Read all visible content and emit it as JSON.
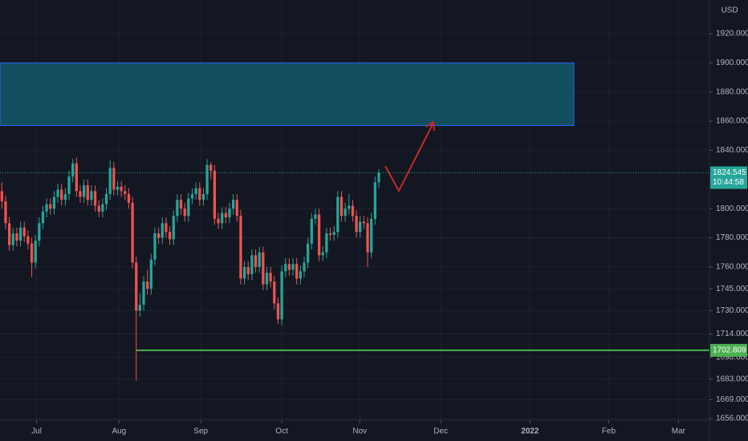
{
  "chart_data": {
    "type": "candlestick",
    "up_color": "#26a69a",
    "down_color": "#ef5350",
    "open": [
      1812,
      1805,
      1790,
      1775,
      1783,
      1778,
      1787,
      1781,
      1776,
      1763,
      1778,
      1790,
      1798,
      1803,
      1800,
      1808,
      1813,
      1806,
      1810,
      1822,
      1831,
      1812,
      1808,
      1816,
      1806,
      1812,
      1802,
      1798,
      1803,
      1810,
      1828,
      1813,
      1815,
      1812,
      1810,
      1804,
      1763,
      1730,
      1734,
      1750,
      1745,
      1765,
      1783,
      1780,
      1790,
      1784,
      1779,
      1795,
      1806,
      1800,
      1795,
      1807,
      1810,
      1814,
      1806,
      1810,
      1830,
      1826,
      1793,
      1790,
      1797,
      1794,
      1800,
      1806,
      1795,
      1752,
      1760,
      1755,
      1768,
      1760,
      1770,
      1748,
      1756,
      1750,
      1735,
      1724,
      1757,
      1762,
      1758,
      1762,
      1752,
      1757,
      1763,
      1776,
      1793,
      1796,
      1768,
      1770,
      1783,
      1782,
      1784,
      1808,
      1795,
      1800,
      1802,
      1795,
      1784,
      1791,
      1790,
      1770,
      1793,
      1818
    ],
    "high": [
      1818,
      1809,
      1794,
      1787,
      1787,
      1791,
      1791,
      1785,
      1780,
      1782,
      1794,
      1802,
      1807,
      1807,
      1812,
      1817,
      1817,
      1814,
      1826,
      1834,
      1835,
      1816,
      1820,
      1820,
      1816,
      1816,
      1806,
      1807,
      1814,
      1833,
      1832,
      1819,
      1819,
      1816,
      1814,
      1808,
      1767,
      1742,
      1754,
      1758,
      1769,
      1787,
      1787,
      1794,
      1794,
      1788,
      1799,
      1810,
      1810,
      1804,
      1811,
      1814,
      1818,
      1818,
      1814,
      1834,
      1832,
      1830,
      1797,
      1801,
      1801,
      1804,
      1810,
      1810,
      1799,
      1764,
      1764,
      1772,
      1772,
      1774,
      1774,
      1760,
      1760,
      1754,
      1739,
      1761,
      1766,
      1766,
      1766,
      1766,
      1761,
      1767,
      1780,
      1797,
      1800,
      1800,
      1774,
      1787,
      1787,
      1788,
      1812,
      1812,
      1804,
      1810,
      1806,
      1799,
      1795,
      1795,
      1794,
      1797,
      1822,
      1827
    ],
    "low": [
      1800,
      1786,
      1771,
      1771,
      1774,
      1774,
      1777,
      1772,
      1753,
      1759,
      1774,
      1786,
      1794,
      1796,
      1796,
      1804,
      1802,
      1802,
      1806,
      1818,
      1808,
      1804,
      1804,
      1802,
      1802,
      1798,
      1794,
      1794,
      1799,
      1806,
      1809,
      1809,
      1808,
      1806,
      1800,
      1759,
      1682,
      1726,
      1730,
      1741,
      1741,
      1761,
      1776,
      1776,
      1780,
      1775,
      1775,
      1791,
      1796,
      1791,
      1791,
      1803,
      1806,
      1802,
      1802,
      1806,
      1820,
      1789,
      1786,
      1786,
      1790,
      1790,
      1796,
      1791,
      1748,
      1748,
      1751,
      1751,
      1756,
      1756,
      1744,
      1744,
      1746,
      1731,
      1721,
      1720,
      1753,
      1754,
      1754,
      1748,
      1748,
      1753,
      1759,
      1772,
      1789,
      1764,
      1764,
      1766,
      1778,
      1778,
      1780,
      1791,
      1791,
      1796,
      1791,
      1780,
      1780,
      1786,
      1760,
      1766,
      1789,
      1814
    ],
    "close": [
      1805,
      1790,
      1775,
      1783,
      1778,
      1787,
      1781,
      1776,
      1763,
      1778,
      1790,
      1798,
      1803,
      1800,
      1808,
      1813,
      1806,
      1810,
      1822,
      1831,
      1812,
      1808,
      1816,
      1806,
      1812,
      1802,
      1798,
      1803,
      1810,
      1828,
      1813,
      1815,
      1812,
      1810,
      1804,
      1763,
      1730,
      1734,
      1750,
      1745,
      1765,
      1783,
      1780,
      1790,
      1784,
      1779,
      1795,
      1806,
      1800,
      1795,
      1807,
      1810,
      1814,
      1806,
      1810,
      1830,
      1826,
      1793,
      1790,
      1797,
      1794,
      1800,
      1806,
      1795,
      1752,
      1760,
      1755,
      1768,
      1760,
      1770,
      1748,
      1756,
      1750,
      1735,
      1724,
      1757,
      1762,
      1758,
      1762,
      1752,
      1757,
      1763,
      1776,
      1793,
      1796,
      1768,
      1770,
      1783,
      1782,
      1784,
      1808,
      1795,
      1800,
      1802,
      1795,
      1784,
      1791,
      1790,
      1770,
      1793,
      1818,
      1824.545
    ],
    "countdown": "10:44:58",
    "currency": "USD",
    "zone": {
      "top": 1900,
      "bottom": 1857,
      "color": "#124e5e",
      "border": "#2962ff"
    },
    "support": {
      "value": 1702.809,
      "color": "#4caf50"
    },
    "xlim": [
      -0.5,
      189.6
    ],
    "xticks": [
      {
        "value": 9.3,
        "label": "Jul"
      },
      {
        "value": 31.4,
        "label": "Aug"
      },
      {
        "value": 53.3,
        "label": "Sep"
      },
      {
        "value": 75,
        "label": "Oct"
      },
      {
        "value": 95.9,
        "label": "Nov"
      },
      {
        "value": 117.6,
        "label": "Dec"
      },
      {
        "value": 141.5,
        "label": "2022"
      },
      {
        "value": 162.6,
        "label": "Feb"
      },
      {
        "value": 181.3,
        "label": "Mar"
      }
    ],
    "ylim": [
      1640.6,
      1943.1
    ],
    "yticks": [
      {
        "value": 1920,
        "label": "1920.000"
      },
      {
        "value": 1900,
        "label": "1900.000"
      },
      {
        "value": 1880,
        "label": "1880.000"
      },
      {
        "value": 1860,
        "label": "1860.000"
      },
      {
        "value": 1840,
        "label": "1840.000"
      },
      {
        "value": 1800,
        "label": "1800.000"
      },
      {
        "value": 1780,
        "label": "1780.000"
      },
      {
        "value": 1760,
        "label": "1760.000"
      },
      {
        "value": 1745,
        "label": "1745.000"
      },
      {
        "value": 1730,
        "label": "1730.000"
      },
      {
        "value": 1714,
        "label": "1714.000"
      },
      {
        "value": 1698,
        "label": "1698.000"
      },
      {
        "value": 1683,
        "label": "1683.000"
      },
      {
        "value": 1669,
        "label": "1669.000"
      },
      {
        "value": 1656,
        "label": "1656.000"
      }
    ],
    "grid": true
  }
}
